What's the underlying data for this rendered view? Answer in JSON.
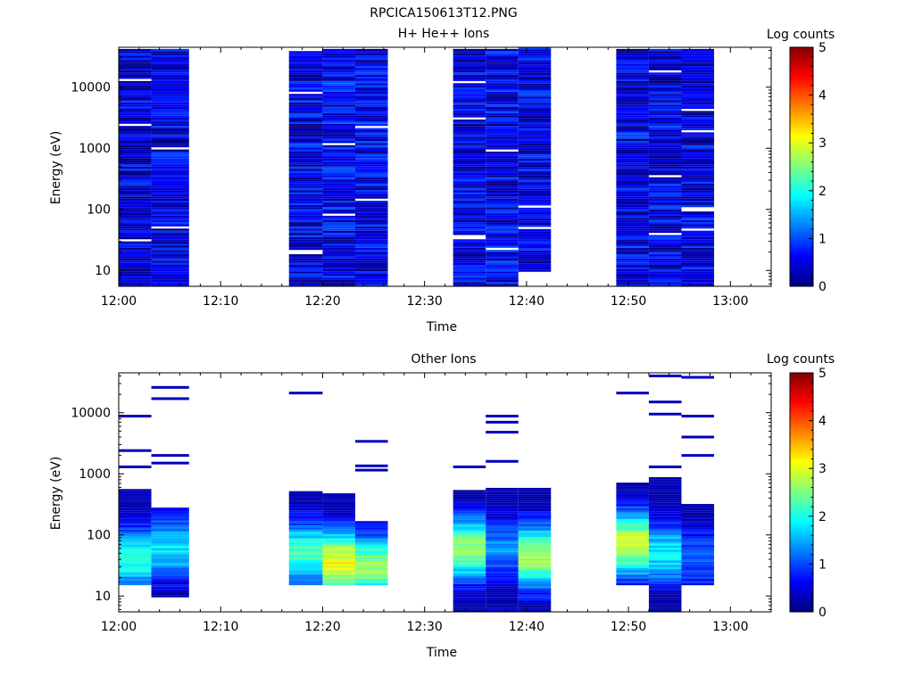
{
  "figure": {
    "title": "RPCICA150613T12.PNG"
  },
  "chart_data": [
    {
      "type": "heatmap",
      "title": "H+ He++ Ions",
      "xlabel": "Time",
      "ylabel": "Energy (eV)",
      "x_tick_labels": [
        "12:00",
        "12:10",
        "12:20",
        "12:30",
        "12:40",
        "12:50",
        "13:00"
      ],
      "x_ticks_minutes": [
        0,
        10,
        20,
        30,
        40,
        50,
        60
      ],
      "xlim_minutes": [
        0,
        64
      ],
      "yscale": "log",
      "ylim": [
        5.5,
        45000
      ],
      "y_tick_labels": [
        "10",
        "100",
        "1000",
        "10000"
      ],
      "y_ticks": [
        10,
        100,
        1000,
        10000
      ],
      "colorbar": {
        "label": "Log counts",
        "range": [
          0,
          5
        ],
        "tick_labels": [
          "0",
          "1",
          "2",
          "3",
          "4",
          "5"
        ]
      },
      "columns": [
        {
          "start_min": 0.0,
          "end_min": 3.2,
          "top_ev": 42000,
          "bottom_ev": 5.5,
          "mean_log_counts": 0.4,
          "gap_ev": [
            30,
            2400,
            13000
          ]
        },
        {
          "start_min": 3.2,
          "end_min": 6.9,
          "top_ev": 42000,
          "bottom_ev": 5.5,
          "mean_log_counts": 0.45,
          "gap_ev": [
            50,
            1000
          ]
        },
        {
          "start_min": 16.7,
          "end_min": 20.0,
          "top_ev": 42000,
          "bottom_ev": 5.5,
          "mean_log_counts": 0.5,
          "gap_ev": [
            20,
            8000,
            40000
          ]
        },
        {
          "start_min": 20.0,
          "end_min": 23.2,
          "top_ev": 42000,
          "bottom_ev": 5.5,
          "mean_log_counts": 0.55,
          "gap_ev": [
            80,
            1200
          ]
        },
        {
          "start_min": 23.2,
          "end_min": 26.4,
          "top_ev": 42000,
          "bottom_ev": 5.5,
          "mean_log_counts": 0.55,
          "gap_ev": [
            140,
            2200
          ]
        },
        {
          "start_min": 32.8,
          "end_min": 36.0,
          "top_ev": 42000,
          "bottom_ev": 5.5,
          "mean_log_counts": 0.5,
          "gap_ev": [
            35,
            3000,
            12000
          ]
        },
        {
          "start_min": 36.0,
          "end_min": 39.2,
          "top_ev": 42000,
          "bottom_ev": 5.5,
          "mean_log_counts": 0.5,
          "gap_ev": [
            22,
            900
          ]
        },
        {
          "start_min": 39.2,
          "end_min": 42.4,
          "top_ev": 42000,
          "bottom_ev": 9.5,
          "mean_log_counts": 0.5,
          "gap_ev": [
            48,
            110
          ]
        },
        {
          "start_min": 48.8,
          "end_min": 52.0,
          "top_ev": 42000,
          "bottom_ev": 5.5,
          "mean_log_counts": 0.5,
          "gap_ev": []
        },
        {
          "start_min": 52.0,
          "end_min": 55.2,
          "top_ev": 42000,
          "bottom_ev": 5.5,
          "mean_log_counts": 0.5,
          "gap_ev": [
            40,
            350,
            18000
          ]
        },
        {
          "start_min": 55.2,
          "end_min": 58.4,
          "top_ev": 42000,
          "bottom_ev": 5.5,
          "mean_log_counts": 0.5,
          "gap_ev": [
            45,
            100,
            1900,
            4200
          ]
        }
      ]
    },
    {
      "type": "heatmap",
      "title": "Other Ions",
      "xlabel": "Time",
      "ylabel": "Energy (eV)",
      "x_tick_labels": [
        "12:00",
        "12:10",
        "12:20",
        "12:30",
        "12:40",
        "12:50",
        "13:00"
      ],
      "x_ticks_minutes": [
        0,
        10,
        20,
        30,
        40,
        50,
        60
      ],
      "xlim_minutes": [
        0,
        64
      ],
      "yscale": "log",
      "ylim": [
        5.5,
        45000
      ],
      "y_tick_labels": [
        "10",
        "100",
        "1000",
        "10000"
      ],
      "y_ticks": [
        10,
        100,
        1000,
        10000
      ],
      "colorbar": {
        "label": "Log counts",
        "range": [
          0,
          5
        ],
        "tick_labels": [
          "0",
          "1",
          "2",
          "3",
          "4",
          "5"
        ]
      },
      "columns": [
        {
          "start_min": 0.0,
          "end_min": 3.2,
          "top_ev": 560,
          "bottom_ev": 15,
          "peak_log_counts": 2.0,
          "peak_ev": 40,
          "sparse_ev": [
            1300,
            2400,
            8800
          ]
        },
        {
          "start_min": 3.2,
          "end_min": 6.9,
          "top_ev": 270,
          "bottom_ev": 9.5,
          "peak_log_counts": 1.7,
          "peak_ev": 60,
          "sparse_ev": [
            1500,
            2000,
            17000,
            26000
          ]
        },
        {
          "start_min": 16.7,
          "end_min": 20.0,
          "top_ev": 500,
          "bottom_ev": 15,
          "peak_log_counts": 2.2,
          "peak_ev": 50,
          "sparse_ev": [
            21000
          ]
        },
        {
          "start_min": 20.0,
          "end_min": 23.2,
          "top_ev": 450,
          "bottom_ev": 15,
          "peak_log_counts": 3.1,
          "peak_ev": 35,
          "sparse_ev": []
        },
        {
          "start_min": 23.2,
          "end_min": 26.4,
          "top_ev": 160,
          "bottom_ev": 15,
          "peak_log_counts": 2.6,
          "peak_ev": 30,
          "sparse_ev": [
            1150,
            1350,
            3400
          ]
        },
        {
          "start_min": 32.8,
          "end_min": 36.0,
          "top_ev": 520,
          "bottom_ev": 5.5,
          "peak_log_counts": 2.6,
          "peak_ev": 60,
          "sparse_ev": [
            1300
          ]
        },
        {
          "start_min": 36.0,
          "end_min": 39.2,
          "top_ev": 560,
          "bottom_ev": 5.5,
          "peak_log_counts": 1.3,
          "peak_ev": 60,
          "sparse_ev": [
            1600,
            4800,
            7000,
            8800
          ]
        },
        {
          "start_min": 39.2,
          "end_min": 42.4,
          "top_ev": 560,
          "bottom_ev": 5.5,
          "peak_log_counts": 2.7,
          "peak_ev": 45,
          "sparse_ev": []
        },
        {
          "start_min": 48.8,
          "end_min": 52.0,
          "top_ev": 700,
          "bottom_ev": 15,
          "peak_log_counts": 2.9,
          "peak_ev": 70,
          "sparse_ev": [
            21000
          ]
        },
        {
          "start_min": 52.0,
          "end_min": 55.2,
          "top_ev": 850,
          "bottom_ev": 5.5,
          "peak_log_counts": 1.8,
          "peak_ev": 50,
          "sparse_ev": [
            1300,
            9500,
            15000,
            40000
          ]
        },
        {
          "start_min": 55.2,
          "end_min": 58.4,
          "top_ev": 310,
          "bottom_ev": 15,
          "peak_log_counts": 1.1,
          "peak_ev": 40,
          "sparse_ev": [
            2000,
            4000,
            8800,
            38000
          ]
        }
      ]
    }
  ]
}
